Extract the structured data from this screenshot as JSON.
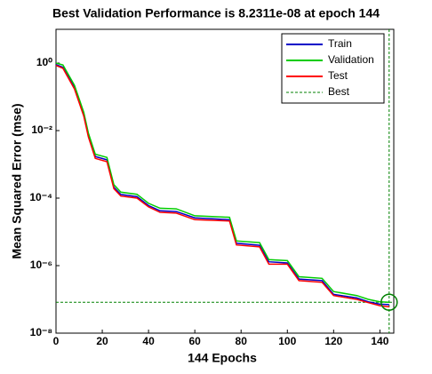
{
  "chart_data": {
    "type": "line",
    "title": "Best Validation Performance is 8.2311e-08 at epoch 144",
    "x_label": "144 Epochs",
    "y_label": "Mean Squared Error  (mse)",
    "x": [
      0,
      3,
      8,
      12,
      14,
      17,
      22,
      25,
      28,
      35,
      40,
      45,
      52,
      60,
      75,
      78,
      88,
      92,
      100,
      105,
      115,
      120,
      130,
      135,
      140,
      144
    ],
    "series": [
      {
        "name": "Train",
        "color": "#0000c8",
        "values": [
          0.9,
          0.75,
          0.19,
          0.03,
          0.0072,
          0.0017,
          0.00136,
          0.00021,
          0.000128,
          0.00011,
          6e-05,
          4.2e-05,
          4e-05,
          2.6e-05,
          2.3e-05,
          4.6e-06,
          4e-06,
          1.3e-06,
          1.2e-06,
          4e-07,
          3.6e-07,
          1.4e-07,
          1.1e-07,
          8.5e-08,
          7.2e-08,
          7e-08
        ]
      },
      {
        "name": "Validation",
        "color": "#00cc00",
        "values": [
          1.0,
          0.88,
          0.22,
          0.035,
          0.0085,
          0.002,
          0.0016,
          0.00025,
          0.00015,
          0.00013,
          7e-05,
          5e-05,
          4.8e-05,
          3e-05,
          2.7e-05,
          5.4e-06,
          4.8e-06,
          1.5e-06,
          1.4e-06,
          4.7e-07,
          4.2e-07,
          1.7e-07,
          1.3e-07,
          1e-07,
          8.5e-08,
          8.2311e-08
        ]
      },
      {
        "name": "Test",
        "color": "#ff0000",
        "values": [
          0.85,
          0.7,
          0.17,
          0.027,
          0.0065,
          0.0015,
          0.0012,
          0.00019,
          0.000115,
          0.0001,
          5.5e-05,
          3.8e-05,
          3.6e-05,
          2.3e-05,
          2.1e-05,
          4.1e-06,
          3.6e-06,
          1.1e-06,
          1.1e-06,
          3.6e-07,
          3.2e-07,
          1.3e-07,
          1e-07,
          8e-08,
          6.5e-08,
          6e-08
        ]
      }
    ],
    "best": {
      "name": "Best",
      "color": "#008000",
      "epoch": 144,
      "value": 8.2311e-08
    },
    "xlim": [
      0,
      146
    ],
    "xticks": [
      0,
      20,
      40,
      60,
      80,
      100,
      120,
      140
    ],
    "ylim": [
      1e-08,
      10
    ],
    "log_y": true,
    "yticks": [
      {
        "value": 1,
        "label": "10⁰"
      },
      {
        "value": 0.01,
        "label": "10⁻²"
      },
      {
        "value": 0.0001,
        "label": "10⁻⁴"
      },
      {
        "value": 1e-06,
        "label": "10⁻⁶"
      },
      {
        "value": 1e-08,
        "label": "10⁻⁸"
      }
    ],
    "legend": "upper right"
  }
}
